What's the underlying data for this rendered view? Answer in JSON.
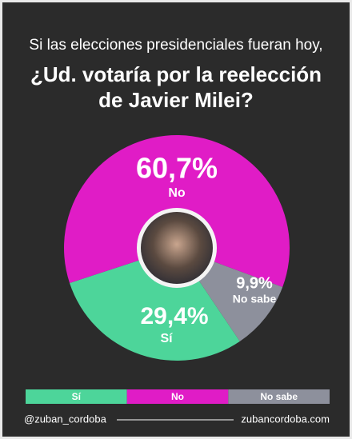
{
  "chart_data": {
    "type": "donut",
    "title_lines": [
      "Si las elecciones presidenciales fueran hoy,",
      "¿Ud. votaría por la reelección",
      "de Javier Milei?"
    ],
    "categories": [
      "Sí",
      "No",
      "No sabe"
    ],
    "values": [
      29.4,
      60.7,
      9.9
    ],
    "value_labels": [
      "29,4%",
      "60,7%",
      "9,9%"
    ],
    "colors": [
      "#4dd59a",
      "#e01cc6",
      "#8d909c"
    ],
    "footer_left": "@zuban_cordoba",
    "footer_right": "zubancordoba.com"
  }
}
